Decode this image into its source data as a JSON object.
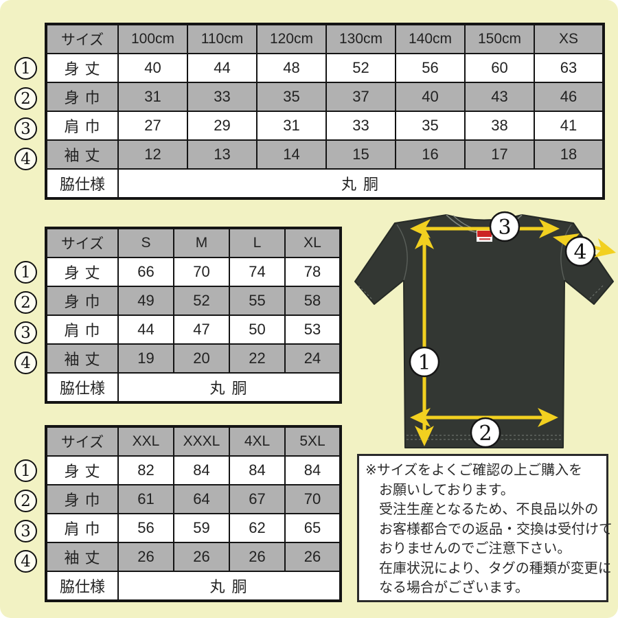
{
  "canvas": {
    "background": "#f2f2c3",
    "table_gray": "#b1b1b1",
    "accent_yellow": "#f2d020",
    "shirt_color": "#333733"
  },
  "tables": [
    {
      "name": "kids-size-table",
      "size_header": "サイズ",
      "columns": [
        "100cm",
        "110cm",
        "120cm",
        "130cm",
        "140cm",
        "150cm",
        "XS"
      ],
      "rows": [
        {
          "marker": "1",
          "label": "身 丈",
          "values": [
            "40",
            "44",
            "48",
            "52",
            "56",
            "60",
            "63"
          ]
        },
        {
          "marker": "2",
          "label": "身 巾",
          "values": [
            "31",
            "33",
            "35",
            "37",
            "40",
            "43",
            "46"
          ]
        },
        {
          "marker": "3",
          "label": "肩 巾",
          "values": [
            "27",
            "29",
            "31",
            "33",
            "35",
            "38",
            "41"
          ]
        },
        {
          "marker": "4",
          "label": "袖 丈",
          "values": [
            "12",
            "13",
            "14",
            "15",
            "16",
            "17",
            "18"
          ]
        }
      ],
      "footer": {
        "label": "脇仕様",
        "value": "丸 胴"
      }
    },
    {
      "name": "adult-size-table",
      "size_header": "サイズ",
      "columns": [
        "S",
        "M",
        "L",
        "XL"
      ],
      "rows": [
        {
          "marker": "1",
          "label": "身 丈",
          "values": [
            "66",
            "70",
            "74",
            "78"
          ]
        },
        {
          "marker": "2",
          "label": "身 巾",
          "values": [
            "49",
            "52",
            "55",
            "58"
          ]
        },
        {
          "marker": "3",
          "label": "肩 巾",
          "values": [
            "44",
            "47",
            "50",
            "53"
          ]
        },
        {
          "marker": "4",
          "label": "袖 丈",
          "values": [
            "19",
            "20",
            "22",
            "24"
          ]
        }
      ],
      "footer": {
        "label": "脇仕様",
        "value": "丸 胴"
      }
    },
    {
      "name": "large-size-table",
      "size_header": "サイズ",
      "columns": [
        "XXL",
        "XXXL",
        "4XL",
        "5XL"
      ],
      "rows": [
        {
          "marker": "1",
          "label": "身 丈",
          "values": [
            "82",
            "84",
            "84",
            "84"
          ]
        },
        {
          "marker": "2",
          "label": "身 巾",
          "values": [
            "61",
            "64",
            "67",
            "70"
          ]
        },
        {
          "marker": "3",
          "label": "肩 巾",
          "values": [
            "56",
            "59",
            "62",
            "65"
          ]
        },
        {
          "marker": "4",
          "label": "袖 丈",
          "values": [
            "26",
            "26",
            "26",
            "26"
          ]
        }
      ],
      "footer": {
        "label": "脇仕様",
        "value": "丸 胴"
      }
    }
  ],
  "tshirt": {
    "markers": [
      "1",
      "2",
      "3",
      "4"
    ],
    "meaning": {
      "1": "身丈 body length (vertical arrow)",
      "2": "身巾 body width (hem arrow)",
      "3": "肩巾 shoulder width (shoulder arrow)",
      "4": "袖丈 sleeve length (sleeve arrow)"
    }
  },
  "notice": {
    "lines": [
      "※サイズをよくご確認の上ご購入を",
      "お願いしております。",
      "受注生産となるため、不良品以外の",
      "お客様都合での返品・交換は受付けて",
      "おりませんのでご注意下さい。",
      "在庫状況により、タグの種類が変更に",
      "なる場合がございます。"
    ]
  }
}
